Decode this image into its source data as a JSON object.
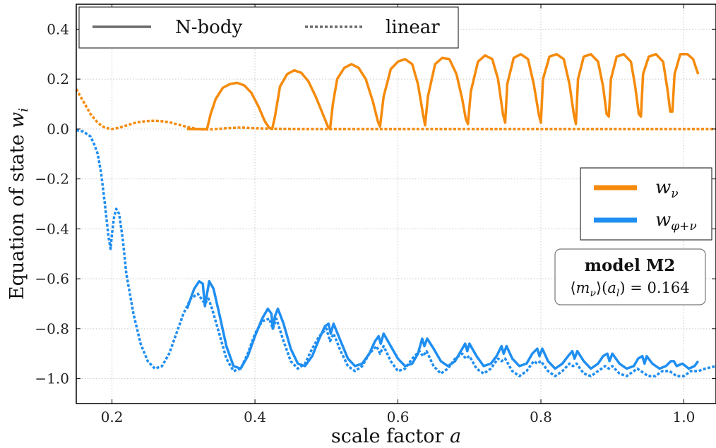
{
  "chart_data": {
    "type": "line",
    "xlabel": "scale factor a",
    "ylabel": "Equation of state w_i",
    "xlim": [
      0.15,
      1.045
    ],
    "ylim": [
      -1.1,
      0.5
    ],
    "xticks": [
      "0.2",
      "0.4",
      "0.6",
      "0.8",
      "1.0"
    ],
    "yticks": [
      "0.4",
      "0.2",
      "0.0",
      "−0.2",
      "−0.4",
      "−0.6",
      "−0.8",
      "−1.0"
    ],
    "grid": true,
    "line_style_legend": [
      {
        "label": "N-body",
        "style": "solid"
      },
      {
        "label": "linear",
        "style": "dotted"
      }
    ],
    "series_legend": [
      {
        "label": "wν",
        "color": "#f58a0b"
      },
      {
        "label": "wφ+ν",
        "color": "#1f8ef1"
      }
    ],
    "annotation": {
      "line1": "model M2",
      "line2": "⟨mν⟩(a_l) = 0.164"
    },
    "series": [
      {
        "style": "dotted",
        "color": "#f58a0b",
        "x": [
          0.15,
          0.16,
          0.17,
          0.18,
          0.19,
          0.2,
          0.21,
          0.22,
          0.23,
          0.24,
          0.25,
          0.26,
          0.27,
          0.28,
          0.29,
          0.3,
          0.31,
          0.32,
          0.33,
          0.34,
          0.36,
          0.38,
          0.4,
          0.43,
          0.47,
          0.52,
          0.6,
          0.7,
          0.8,
          0.9,
          1.045
        ],
        "y": [
          0.16,
          0.11,
          0.06,
          0.025,
          0.005,
          0.0,
          0.005,
          0.014,
          0.023,
          0.029,
          0.032,
          0.033,
          0.031,
          0.027,
          0.02,
          0.012,
          0.005,
          0.0,
          -0.002,
          -0.001,
          0.003,
          0.006,
          0.003,
          0.001,
          0.0,
          0.0,
          0.0,
          0.0,
          0.0,
          0.0,
          0.0
        ]
      },
      {
        "style": "solid",
        "color": "#f58a0b",
        "x": [
          0.305,
          0.313,
          0.322,
          0.333,
          0.338,
          0.345,
          0.355,
          0.365,
          0.375,
          0.385,
          0.395,
          0.405,
          0.414,
          0.42,
          0.424,
          0.428,
          0.435,
          0.445,
          0.455,
          0.465,
          0.475,
          0.485,
          0.495,
          0.502,
          0.505,
          0.509,
          0.515,
          0.525,
          0.535,
          0.545,
          0.555,
          0.565,
          0.572,
          0.575,
          0.58,
          0.59,
          0.6,
          0.61,
          0.62,
          0.628,
          0.635,
          0.638,
          0.642,
          0.652,
          0.662,
          0.672,
          0.682,
          0.69,
          0.695,
          0.698,
          0.702,
          0.712,
          0.722,
          0.732,
          0.74,
          0.747,
          0.75,
          0.753,
          0.762,
          0.772,
          0.782,
          0.79,
          0.797,
          0.8,
          0.803,
          0.812,
          0.822,
          0.832,
          0.84,
          0.846,
          0.849,
          0.852,
          0.86,
          0.87,
          0.88,
          0.887,
          0.892,
          0.895,
          0.898,
          0.906,
          0.916,
          0.926,
          0.932,
          0.937,
          0.94,
          0.943,
          0.951,
          0.961,
          0.971,
          0.977,
          0.981,
          0.984,
          0.987,
          0.995,
          1.005,
          1.013,
          1.02
        ],
        "y": [
          0.0,
          0.0,
          0.0,
          0.0,
          0.06,
          0.12,
          0.165,
          0.18,
          0.185,
          0.175,
          0.145,
          0.09,
          0.03,
          0.005,
          0.0,
          0.05,
          0.17,
          0.22,
          0.235,
          0.225,
          0.19,
          0.13,
          0.06,
          0.01,
          0.0,
          0.1,
          0.2,
          0.245,
          0.26,
          0.245,
          0.2,
          0.11,
          0.03,
          0.01,
          0.13,
          0.24,
          0.27,
          0.28,
          0.26,
          0.18,
          0.06,
          0.015,
          0.13,
          0.26,
          0.285,
          0.28,
          0.22,
          0.12,
          0.04,
          0.02,
          0.15,
          0.27,
          0.295,
          0.28,
          0.2,
          0.06,
          0.025,
          0.18,
          0.285,
          0.3,
          0.28,
          0.18,
          0.06,
          0.025,
          0.2,
          0.29,
          0.3,
          0.28,
          0.18,
          0.06,
          0.02,
          0.2,
          0.29,
          0.3,
          0.27,
          0.17,
          0.06,
          0.05,
          0.2,
          0.29,
          0.3,
          0.27,
          0.17,
          0.06,
          0.05,
          0.22,
          0.29,
          0.3,
          0.27,
          0.16,
          0.07,
          0.07,
          0.22,
          0.3,
          0.3,
          0.28,
          0.22
        ]
      },
      {
        "style": "dotted",
        "color": "#1f8ef1",
        "x": [
          0.15,
          0.16,
          0.17,
          0.175,
          0.18,
          0.185,
          0.19,
          0.195,
          0.198,
          0.2,
          0.203,
          0.206,
          0.21,
          0.215,
          0.22,
          0.23,
          0.24,
          0.25,
          0.26,
          0.27,
          0.28,
          0.29,
          0.3,
          0.31,
          0.32,
          0.325,
          0.33,
          0.335,
          0.34,
          0.35,
          0.36,
          0.37,
          0.38,
          0.39,
          0.4,
          0.41,
          0.42,
          0.425,
          0.43,
          0.44,
          0.45,
          0.46,
          0.47,
          0.48,
          0.49,
          0.5,
          0.505,
          0.51,
          0.52,
          0.53,
          0.54,
          0.55,
          0.56,
          0.57,
          0.575,
          0.58,
          0.59,
          0.6,
          0.61,
          0.62,
          0.63,
          0.635,
          0.64,
          0.65,
          0.66,
          0.67,
          0.68,
          0.69,
          0.695,
          0.7,
          0.71,
          0.72,
          0.73,
          0.74,
          0.745,
          0.75,
          0.76,
          0.77,
          0.78,
          0.79,
          0.795,
          0.8,
          0.81,
          0.82,
          0.83,
          0.84,
          0.845,
          0.85,
          0.86,
          0.87,
          0.88,
          0.89,
          0.895,
          0.9,
          0.91,
          0.92,
          0.93,
          0.935,
          0.94,
          0.95,
          0.96,
          0.97,
          0.975,
          0.98,
          0.99,
          1.0,
          1.01,
          1.02,
          1.03,
          1.045
        ],
        "y": [
          -0.005,
          -0.01,
          -0.03,
          -0.06,
          -0.1,
          -0.18,
          -0.3,
          -0.43,
          -0.48,
          -0.42,
          -0.35,
          -0.32,
          -0.34,
          -0.44,
          -0.58,
          -0.74,
          -0.86,
          -0.93,
          -0.96,
          -0.95,
          -0.9,
          -0.82,
          -0.74,
          -0.68,
          -0.66,
          -0.68,
          -0.7,
          -0.68,
          -0.72,
          -0.82,
          -0.92,
          -0.97,
          -0.96,
          -0.9,
          -0.82,
          -0.77,
          -0.76,
          -0.8,
          -0.76,
          -0.85,
          -0.93,
          -0.96,
          -0.94,
          -0.88,
          -0.83,
          -0.8,
          -0.85,
          -0.82,
          -0.89,
          -0.95,
          -0.97,
          -0.95,
          -0.9,
          -0.87,
          -0.9,
          -0.87,
          -0.93,
          -0.97,
          -0.96,
          -0.92,
          -0.89,
          -0.91,
          -0.89,
          -0.95,
          -0.98,
          -0.96,
          -0.92,
          -0.9,
          -0.92,
          -0.91,
          -0.96,
          -0.98,
          -0.96,
          -0.92,
          -0.93,
          -0.92,
          -0.97,
          -0.99,
          -0.97,
          -0.93,
          -0.94,
          -0.93,
          -0.97,
          -0.99,
          -0.97,
          -0.94,
          -0.95,
          -0.94,
          -0.98,
          -0.99,
          -0.97,
          -0.95,
          -0.96,
          -0.95,
          -0.98,
          -0.99,
          -0.97,
          -0.96,
          -0.97,
          -0.99,
          -0.99,
          -0.97,
          -0.97,
          -0.97,
          -0.99,
          -0.99,
          -0.97,
          -0.97,
          -0.96,
          -0.95
        ]
      },
      {
        "style": "solid",
        "color": "#1f8ef1",
        "x": [
          0.305,
          0.315,
          0.322,
          0.327,
          0.33,
          0.333,
          0.336,
          0.342,
          0.35,
          0.36,
          0.37,
          0.38,
          0.39,
          0.4,
          0.41,
          0.418,
          0.423,
          0.425,
          0.428,
          0.432,
          0.44,
          0.45,
          0.46,
          0.47,
          0.48,
          0.49,
          0.498,
          0.503,
          0.506,
          0.51,
          0.52,
          0.53,
          0.54,
          0.55,
          0.56,
          0.568,
          0.573,
          0.576,
          0.58,
          0.59,
          0.6,
          0.61,
          0.62,
          0.628,
          0.634,
          0.637,
          0.641,
          0.65,
          0.66,
          0.67,
          0.68,
          0.688,
          0.694,
          0.697,
          0.7,
          0.71,
          0.72,
          0.73,
          0.738,
          0.745,
          0.748,
          0.752,
          0.76,
          0.77,
          0.78,
          0.788,
          0.795,
          0.798,
          0.802,
          0.81,
          0.82,
          0.83,
          0.838,
          0.844,
          0.847,
          0.851,
          0.86,
          0.87,
          0.88,
          0.887,
          0.893,
          0.896,
          0.9,
          0.91,
          0.92,
          0.93,
          0.936,
          0.942,
          0.945,
          0.948,
          0.956,
          0.966,
          0.975,
          0.982,
          0.986,
          0.99,
          0.998,
          1.007,
          1.015,
          1.02
        ],
        "y": [
          -0.72,
          -0.64,
          -0.61,
          -0.62,
          -0.71,
          -0.66,
          -0.61,
          -0.64,
          -0.74,
          -0.87,
          -0.95,
          -0.96,
          -0.91,
          -0.83,
          -0.76,
          -0.72,
          -0.74,
          -0.8,
          -0.75,
          -0.72,
          -0.78,
          -0.88,
          -0.94,
          -0.95,
          -0.91,
          -0.84,
          -0.79,
          -0.78,
          -0.82,
          -0.78,
          -0.85,
          -0.92,
          -0.95,
          -0.94,
          -0.9,
          -0.85,
          -0.83,
          -0.86,
          -0.82,
          -0.87,
          -0.92,
          -0.95,
          -0.94,
          -0.9,
          -0.84,
          -0.87,
          -0.84,
          -0.88,
          -0.93,
          -0.95,
          -0.93,
          -0.89,
          -0.86,
          -0.89,
          -0.86,
          -0.91,
          -0.95,
          -0.94,
          -0.91,
          -0.87,
          -0.9,
          -0.87,
          -0.92,
          -0.95,
          -0.94,
          -0.9,
          -0.88,
          -0.91,
          -0.88,
          -0.93,
          -0.96,
          -0.94,
          -0.91,
          -0.89,
          -0.92,
          -0.89,
          -0.93,
          -0.96,
          -0.94,
          -0.91,
          -0.9,
          -0.93,
          -0.9,
          -0.94,
          -0.96,
          -0.95,
          -0.92,
          -0.91,
          -0.94,
          -0.91,
          -0.94,
          -0.96,
          -0.95,
          -0.93,
          -0.93,
          -0.95,
          -0.94,
          -0.96,
          -0.95,
          -0.93
        ]
      }
    ]
  }
}
